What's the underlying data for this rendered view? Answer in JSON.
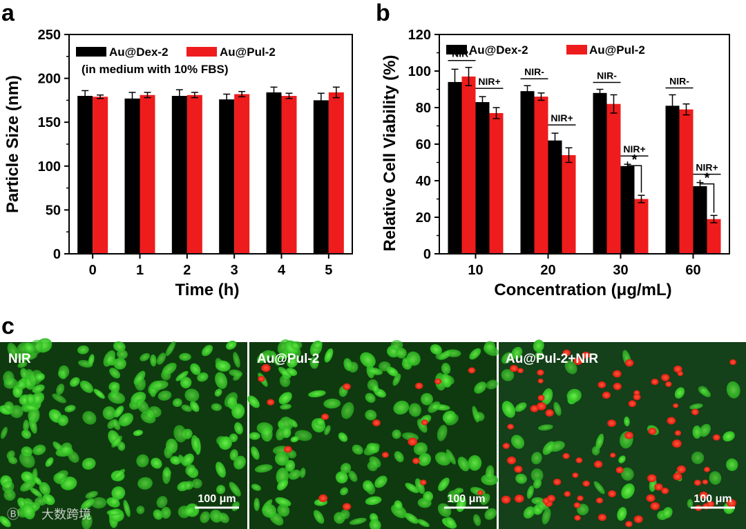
{
  "panels": {
    "a": "a",
    "b": "b",
    "c": "c"
  },
  "colors": {
    "dex": "#000000",
    "pul": "#ee1c1c"
  },
  "chart_data": [
    {
      "type": "bar",
      "panel": "a",
      "categories": [
        "0",
        "1",
        "2",
        "3",
        "4",
        "5"
      ],
      "xlabel": "Time (h)",
      "ylabel": "Particle Size (nm)",
      "ylim": [
        0,
        250
      ],
      "yticks": [
        "0",
        "50",
        "100",
        "150",
        "200",
        "250"
      ],
      "legend_note": "(in medium with 10% FBS)",
      "legend_placement": "top-left",
      "series": [
        {
          "name": "Au@Dex-2",
          "values": [
            180,
            177,
            180,
            176,
            184,
            175
          ],
          "errors": [
            6,
            7,
            7,
            6,
            6,
            8
          ]
        },
        {
          "name": "Au@Pul-2",
          "values": [
            179,
            181,
            181,
            182,
            180,
            184
          ],
          "errors": [
            2,
            3,
            3,
            3,
            3,
            6
          ]
        }
      ]
    },
    {
      "type": "bar",
      "panel": "b",
      "categories": [
        "10",
        "20",
        "30",
        "60"
      ],
      "xlabel": "Concentration (μg/mL)",
      "ylabel": "Relative Cell Viability (%)",
      "ylim": [
        0,
        120
      ],
      "yticks": [
        "0",
        "20",
        "40",
        "60",
        "80",
        "100",
        "120"
      ],
      "legend_placement": "top",
      "series": [
        {
          "name": "Au@Dex-2",
          "nir_minus": [
            94,
            89,
            88,
            81
          ],
          "nir_minus_err": [
            7,
            3,
            2,
            6
          ],
          "nir_plus": [
            83,
            62,
            48,
            37
          ],
          "nir_plus_err": [
            3,
            4,
            1,
            2
          ]
        },
        {
          "name": "Au@Pul-2",
          "nir_minus": [
            97,
            86,
            82,
            79
          ],
          "nir_minus_err": [
            5,
            2,
            5,
            3
          ],
          "nir_plus": [
            77,
            54,
            30,
            19
          ],
          "nir_plus_err": [
            3,
            4,
            2,
            2
          ]
        }
      ],
      "group_labels": {
        "minus": "NIR-",
        "plus": "NIR+"
      },
      "significance": {
        "label": "*",
        "categories": [
          "30",
          "60"
        ]
      }
    }
  ],
  "micrographs": [
    {
      "label": "NIR",
      "scale_bar": "100 μm"
    },
    {
      "label": "Au@Pul-2",
      "scale_bar": "100 μm"
    },
    {
      "label": "Au@Pul-2+NIR",
      "scale_bar": "100 μm"
    }
  ],
  "watermark": "大数跨境"
}
